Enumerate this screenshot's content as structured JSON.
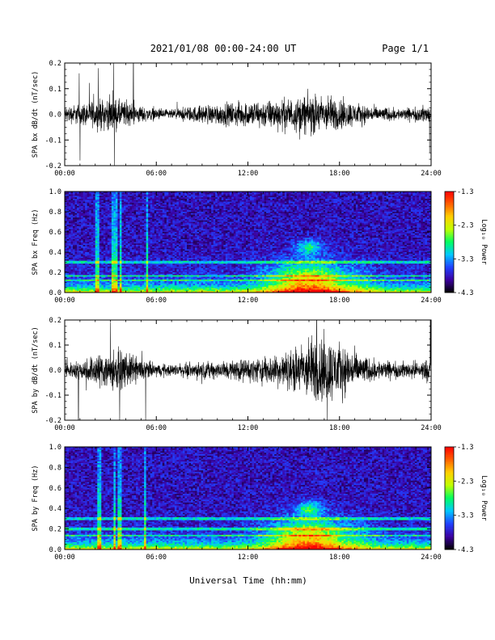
{
  "header": {
    "date_range": "2021/01/08  00:00-24:00 UT",
    "page": "Page 1/1"
  },
  "x_axis": {
    "label": "Universal Time (hh:mm)",
    "range_hours": [
      0,
      24
    ],
    "ticks": [
      "00:00",
      "06:00",
      "12:00",
      "18:00",
      "24:00"
    ]
  },
  "colorbar": {
    "label": "Log₁₀ Power",
    "ticks": [
      "-1.3",
      "-2.3",
      "-3.3",
      "-4.3"
    ],
    "range": [
      -4.3,
      -1.3
    ],
    "colors": [
      "#000000",
      "#3c00a0",
      "#2040ff",
      "#00c8ff",
      "#00ff60",
      "#c0ff00",
      "#ffd000",
      "#ff6000",
      "#ff0000"
    ]
  },
  "chart_data": [
    {
      "type": "line",
      "id": "bx-timeseries",
      "ylabel": "SPA bx dB/dt (nT/sec)",
      "ylim": [
        -0.2,
        0.2
      ],
      "yticks": [
        "0.2",
        "0.1",
        "0.0",
        "-0.1",
        "-0.2"
      ],
      "envelope": {
        "hours": [
          0,
          1,
          2,
          3,
          4,
          5,
          6,
          7,
          8,
          9,
          10,
          11,
          12,
          13,
          14,
          15,
          16,
          17,
          18,
          19,
          20,
          21,
          22,
          23,
          24
        ],
        "amplitude": [
          0.035,
          0.045,
          0.06,
          0.07,
          0.055,
          0.035,
          0.025,
          0.02,
          0.03,
          0.04,
          0.045,
          0.05,
          0.055,
          0.06,
          0.065,
          0.07,
          0.085,
          0.08,
          0.07,
          0.05,
          0.035,
          0.03,
          0.025,
          0.03,
          0.04
        ]
      },
      "spikes": [
        {
          "hour": 0.95,
          "value": 0.16
        },
        {
          "hour": 1.0,
          "value": -0.18
        },
        {
          "hour": 2.2,
          "value": 0.18
        },
        {
          "hour": 3.2,
          "value": 0.2
        },
        {
          "hour": 3.25,
          "value": -0.2
        },
        {
          "hour": 4.5,
          "value": 0.2
        },
        {
          "hour": 23.9,
          "value": -0.15
        }
      ]
    },
    {
      "type": "heatmap",
      "id": "bx-spectrogram",
      "ylabel": "SPA bx Freq (Hz)",
      "ylim": [
        0.0,
        1.0
      ],
      "yticks": [
        "1.0",
        "0.8",
        "0.6",
        "0.4",
        "0.2",
        "0.0"
      ],
      "vertical_streaks_hours": [
        2.1,
        2.2,
        3.2,
        3.4,
        3.7,
        5.4
      ],
      "horizontal_bands_hz": [
        0.29,
        0.31,
        0.17,
        0.12
      ],
      "enhancement": {
        "hour_range": [
          11.5,
          21.5
        ],
        "peak_hour": 16.0,
        "peak_freq_hz": 0.45
      },
      "power_range": [
        -4.3,
        -1.3
      ]
    },
    {
      "type": "line",
      "id": "by-timeseries",
      "ylabel": "SPA by dB/dt (nT/sec)",
      "ylim": [
        -0.2,
        0.2
      ],
      "yticks": [
        "0.2",
        "0.1",
        "0.0",
        "-0.1",
        "-0.2"
      ],
      "envelope": {
        "hours": [
          0,
          1,
          2,
          3,
          4,
          5,
          6,
          7,
          8,
          9,
          10,
          11,
          12,
          13,
          14,
          15,
          16,
          17,
          18,
          19,
          20,
          21,
          22,
          23,
          24
        ],
        "amplitude": [
          0.03,
          0.04,
          0.07,
          0.09,
          0.075,
          0.05,
          0.03,
          0.025,
          0.03,
          0.035,
          0.04,
          0.045,
          0.05,
          0.06,
          0.07,
          0.09,
          0.14,
          0.15,
          0.12,
          0.08,
          0.05,
          0.04,
          0.035,
          0.04,
          0.05
        ]
      },
      "spikes": [
        {
          "hour": 0.9,
          "value": -0.2
        },
        {
          "hour": 3.0,
          "value": 0.19
        },
        {
          "hour": 3.6,
          "value": -0.2
        },
        {
          "hour": 5.3,
          "value": -0.2
        },
        {
          "hour": 16.5,
          "value": 0.2
        },
        {
          "hour": 17.2,
          "value": -0.2
        },
        {
          "hour": 23.95,
          "value": 0.2
        }
      ]
    },
    {
      "type": "heatmap",
      "id": "by-spectrogram",
      "ylabel": "SPA by Freq (Hz)",
      "ylim": [
        0.0,
        1.0
      ],
      "yticks": [
        "1.0",
        "0.8",
        "0.6",
        "0.4",
        "0.2",
        "0.0"
      ],
      "vertical_streaks_hours": [
        2.2,
        2.3,
        3.3,
        3.6,
        5.3
      ],
      "horizontal_bands_hz": [
        0.29,
        0.31,
        0.2,
        0.13
      ],
      "enhancement": {
        "hour_range": [
          11.5,
          21.5
        ],
        "peak_hour": 16.0,
        "peak_freq_hz": 0.4
      },
      "power_range": [
        -4.3,
        -1.3
      ]
    }
  ]
}
